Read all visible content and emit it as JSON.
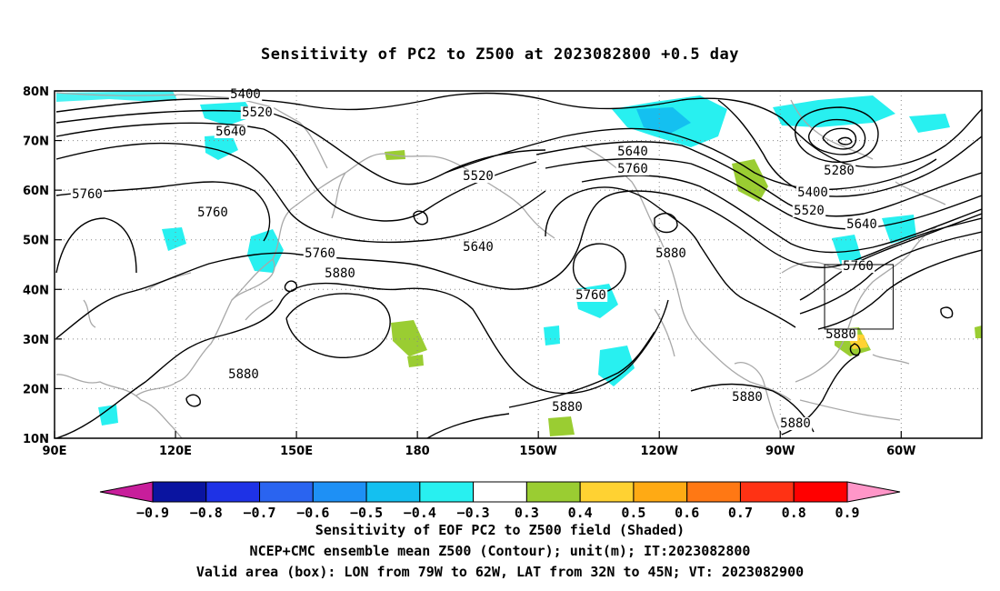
{
  "title": "Sensitivity of PC2 to Z500 at 2023082800 +0.5 day",
  "map": {
    "lat_labels": [
      "80N",
      "70N",
      "60N",
      "50N",
      "40N",
      "30N",
      "20N",
      "10N"
    ],
    "lon_labels": [
      "90E",
      "120E",
      "150E",
      "180",
      "150W",
      "120W",
      "90W",
      "60W"
    ],
    "lat_values": [
      80,
      70,
      60,
      50,
      40,
      30,
      20,
      10
    ],
    "lon_values": [
      90,
      120,
      150,
      180,
      210,
      240,
      270,
      300
    ],
    "contour_labels": [
      "5400",
      "5520",
      "5640",
      "5760",
      "5280",
      "5880"
    ],
    "valid_box": {
      "lon_min": -79,
      "lon_max": -62,
      "lat_min": 32,
      "lat_max": 45
    }
  },
  "colorbar": {
    "labels": [
      "−0.9",
      "−0.8",
      "−0.7",
      "−0.6",
      "−0.5",
      "−0.4",
      "−0.3",
      "0.3",
      "0.4",
      "0.5",
      "0.6",
      "0.7",
      "0.8",
      "0.9"
    ],
    "colors": [
      "#0a14a0",
      "#1e32e6",
      "#2a64f0",
      "#1e90f5",
      "#14c0f0",
      "#28f0f0",
      "#ffffff",
      "#9acd32",
      "#ffd232",
      "#ffaa14",
      "#ff7814",
      "#ff3214",
      "#ff0000"
    ],
    "low_end_color": "#c81e9b",
    "high_end_color": "#ff96c8"
  },
  "captions": {
    "line1": "Sensitivity of EOF PC2 to Z500 field (Shaded)",
    "line2": "NCEP+CMC ensemble mean Z500 (Contour); unit(m); IT:2023082800",
    "line3": "Valid area (box): LON from 79W to 62W, LAT from 32N to 45N; VT: 2023082900"
  }
}
